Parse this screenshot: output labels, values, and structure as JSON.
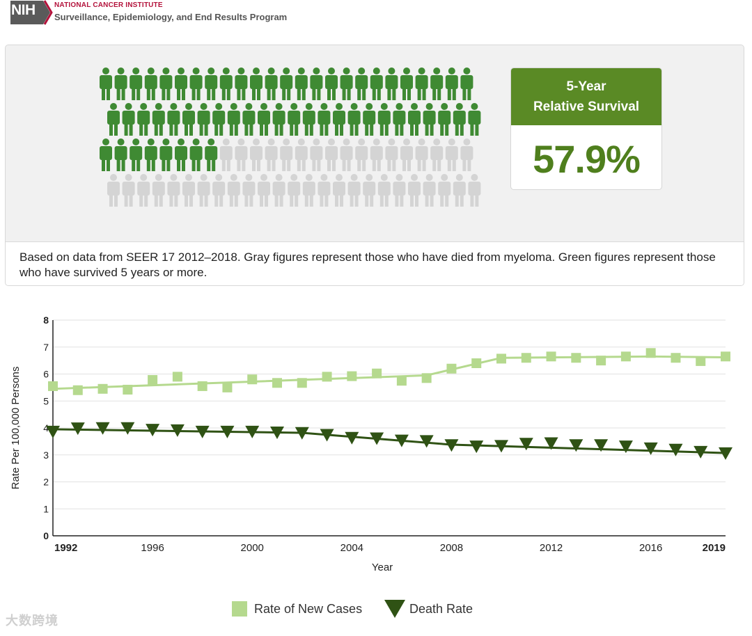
{
  "header": {
    "logo_text": "NIH",
    "org_top": "NATIONAL CANCER INSTITUTE",
    "org_sub": "Surveillance, Epidemiology, and End Results Program"
  },
  "survival": {
    "card_title_line1": "5-Year",
    "card_title_line2": "Relative Survival",
    "value": "57.9%",
    "caption": "Based on data from SEER 17 2012–2018. Gray figures represent those who have died from myeloma. Green figures represent those who have survived 5 years or more.",
    "pictogram": {
      "total": 100,
      "survived": 58,
      "per_row": 25,
      "survived_color": "#3f8a33",
      "died_color": "#d4d4d4"
    }
  },
  "chart_data": {
    "type": "line",
    "xlabel": "Year",
    "ylabel": "Rate Per 100,000 Persons",
    "xlim": [
      1992,
      2019
    ],
    "ylim": [
      0,
      8
    ],
    "x_ticks": [
      1992,
      1996,
      2000,
      2004,
      2008,
      2012,
      2016,
      2019
    ],
    "x_ticks_bold": [
      1992,
      2019
    ],
    "y_ticks": [
      0,
      1,
      2,
      3,
      4,
      5,
      6,
      7,
      8
    ],
    "x": [
      1992,
      1993,
      1994,
      1995,
      1996,
      1997,
      1998,
      1999,
      2000,
      2001,
      2002,
      2003,
      2004,
      2005,
      2006,
      2007,
      2008,
      2009,
      2010,
      2011,
      2012,
      2013,
      2014,
      2015,
      2016,
      2017,
      2018,
      2019
    ],
    "series": [
      {
        "name": "Rate of New Cases",
        "color": "#b5d98e",
        "marker": "square",
        "values": [
          5.55,
          5.4,
          5.45,
          5.42,
          5.78,
          5.9,
          5.55,
          5.5,
          5.8,
          5.67,
          5.67,
          5.9,
          5.92,
          6.02,
          5.75,
          5.85,
          6.2,
          6.4,
          6.57,
          6.6,
          6.65,
          6.6,
          6.5,
          6.65,
          6.78,
          6.6,
          6.48,
          6.65
        ],
        "trend": [
          [
            1992,
            5.45
          ],
          [
            2007,
            5.95
          ],
          [
            2010,
            6.6
          ],
          [
            2016,
            6.65
          ],
          [
            2019,
            6.62
          ]
        ]
      },
      {
        "name": "Death Rate",
        "color": "#2f5214",
        "marker": "triangle-down",
        "values": [
          3.85,
          3.97,
          3.98,
          3.98,
          3.92,
          3.9,
          3.85,
          3.85,
          3.85,
          3.82,
          3.8,
          3.73,
          3.62,
          3.6,
          3.52,
          3.5,
          3.35,
          3.3,
          3.32,
          3.4,
          3.42,
          3.35,
          3.35,
          3.3,
          3.23,
          3.18,
          3.1,
          3.05
        ],
        "trend": [
          [
            1992,
            3.95
          ],
          [
            2002,
            3.82
          ],
          [
            2008,
            3.38
          ],
          [
            2019,
            3.07
          ]
        ]
      }
    ],
    "legend_position": "bottom-center"
  },
  "watermark": "大数跨境"
}
